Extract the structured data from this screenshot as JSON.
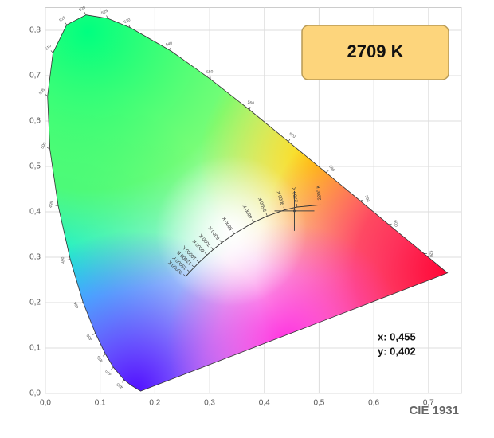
{
  "chart_data": {
    "type": "chromaticity",
    "title": "CIE 1931",
    "xlim": [
      0,
      0.76
    ],
    "ylim": [
      0,
      0.85
    ],
    "xticks": [
      {
        "value": 0,
        "label": "0,0"
      },
      {
        "value": 0.1,
        "label": "0,1"
      },
      {
        "value": 0.2,
        "label": "0,2"
      },
      {
        "value": 0.3,
        "label": "0,3"
      },
      {
        "value": 0.4,
        "label": "0,4"
      },
      {
        "value": 0.5,
        "label": "0,5"
      },
      {
        "value": 0.6,
        "label": "0,6"
      },
      {
        "value": 0.7,
        "label": "0,7"
      }
    ],
    "yticks": [
      {
        "value": 0,
        "label": "0,0"
      },
      {
        "value": 0.1,
        "label": "0,1"
      },
      {
        "value": 0.2,
        "label": "0,2"
      },
      {
        "value": 0.3,
        "label": "0,3"
      },
      {
        "value": 0.4,
        "label": "0,4"
      },
      {
        "value": 0.5,
        "label": "0,5"
      },
      {
        "value": 0.6,
        "label": "0,6"
      },
      {
        "value": 0.7,
        "label": "0,7"
      },
      {
        "value": 0.8,
        "label": "0,8"
      }
    ],
    "grid": true,
    "spectral_locus": {
      "x": [
        0.1741,
        0.1566,
        0.144,
        0.1241,
        0.1096,
        0.0913,
        0.0687,
        0.0454,
        0.0235,
        0.0082,
        0.0039,
        0.0139,
        0.0389,
        0.0743,
        0.1142,
        0.1547,
        0.2296,
        0.3016,
        0.3731,
        0.4441,
        0.5125,
        0.5752,
        0.627,
        0.6915,
        0.7347
      ],
      "y": [
        0.005,
        0.0177,
        0.0297,
        0.0578,
        0.0868,
        0.1327,
        0.2007,
        0.295,
        0.4127,
        0.5384,
        0.6548,
        0.7502,
        0.812,
        0.8338,
        0.8262,
        0.8059,
        0.7543,
        0.6923,
        0.6245,
        0.5547,
        0.4866,
        0.4242,
        0.3725,
        0.3083,
        0.2653
      ],
      "labels": [
        null,
        null,
        "460",
        "470",
        "475",
        "480",
        "485",
        "490",
        "495",
        "500",
        "505",
        "510",
        "515",
        "520",
        "525",
        "530",
        "540",
        "550",
        "560",
        "570",
        "580",
        "590",
        "600",
        "620",
        null
      ]
    },
    "planckian_locus": {
      "x": [
        0.502,
        0.4599,
        0.4369,
        0.4053,
        0.3805,
        0.3451,
        0.3221,
        0.3064,
        0.2952,
        0.2807,
        0.272,
        0.2637,
        0.2565
      ],
      "y": [
        0.4152,
        0.4106,
        0.4041,
        0.3907,
        0.3768,
        0.3516,
        0.3318,
        0.3166,
        0.3048,
        0.2884,
        0.2777,
        0.2674,
        0.2577
      ],
      "labels": [
        "2200 K",
        "2700 K",
        "3000 K",
        "3500 K",
        "4000 K",
        "5000 K",
        "6000 K",
        "7000 K",
        "8000 K",
        "10000 K",
        "12000 K",
        "15000 K",
        "20000 K"
      ]
    },
    "point": {
      "x": 0.455,
      "y": 0.402,
      "x_label": "x: 0,455",
      "y_label": "y: 0,402",
      "cct_label": "2709 K"
    }
  }
}
